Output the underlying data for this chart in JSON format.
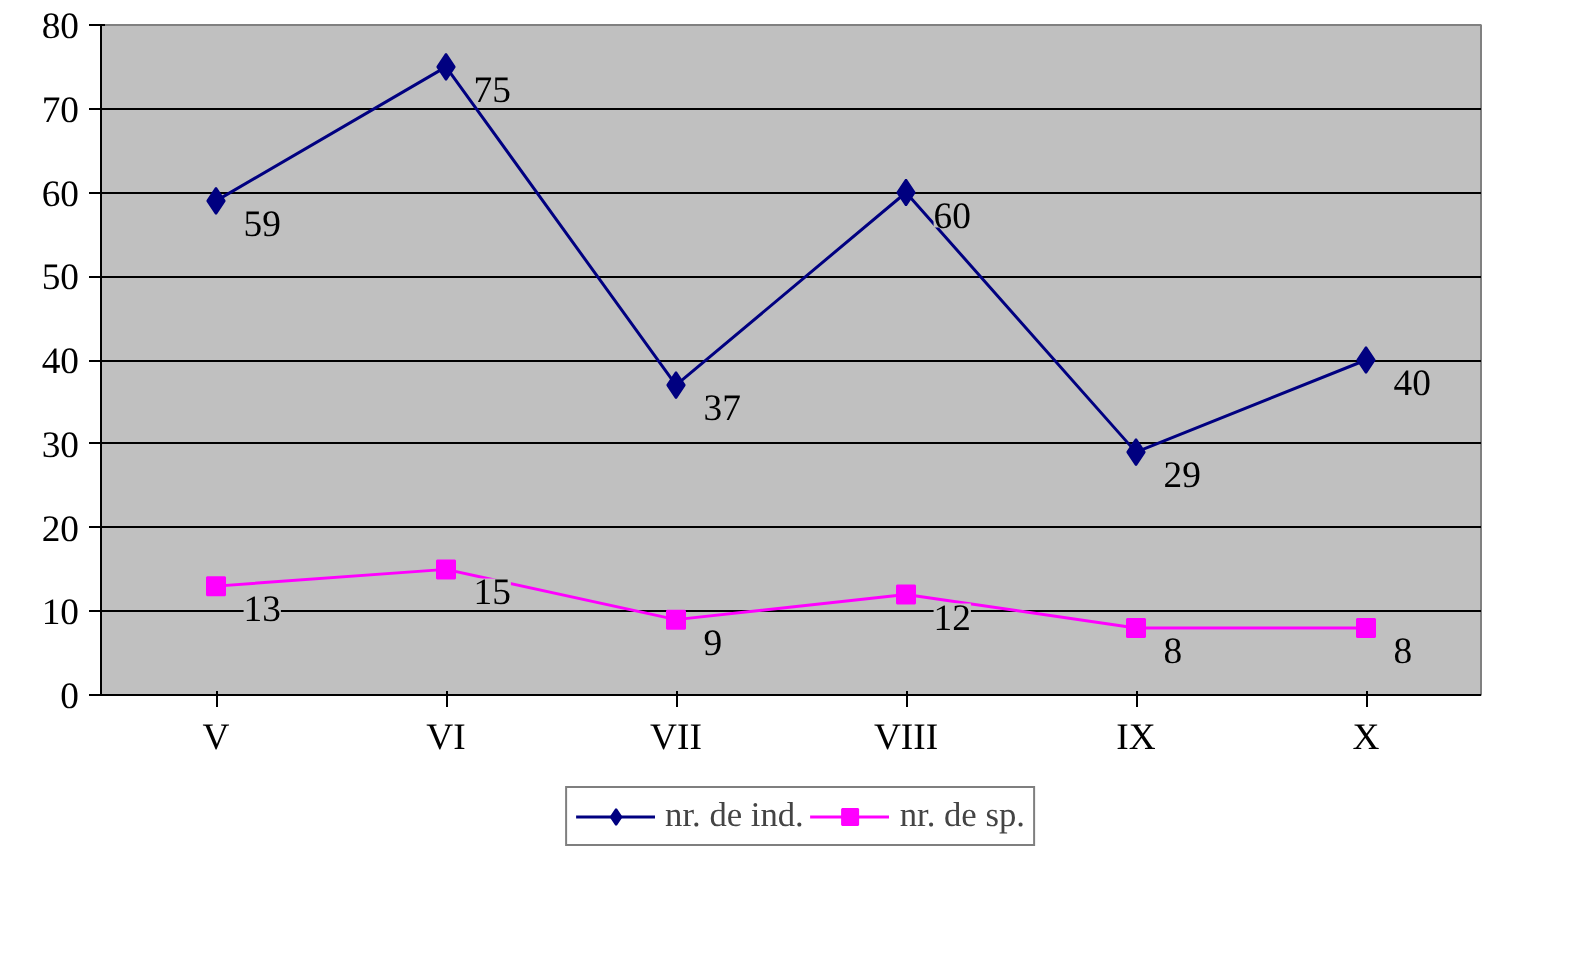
{
  "chart_data": {
    "type": "line",
    "categories": [
      "V",
      "VI",
      "VII",
      "VIII",
      "IX",
      "X"
    ],
    "series": [
      {
        "name": "nr. de ind.",
        "color": "#000080",
        "marker": "diamond",
        "values": [
          59,
          75,
          37,
          60,
          29,
          40
        ]
      },
      {
        "name": "nr. de sp.",
        "color": "#ff00ff",
        "marker": "square",
        "values": [
          13,
          15,
          9,
          12,
          8,
          8
        ]
      }
    ],
    "ylim": [
      0,
      80
    ],
    "yticks": [
      0,
      10,
      20,
      30,
      40,
      50,
      60,
      70,
      80
    ],
    "grid": "y",
    "legend": "bottom",
    "data_labels": true,
    "line_style": "solid"
  }
}
